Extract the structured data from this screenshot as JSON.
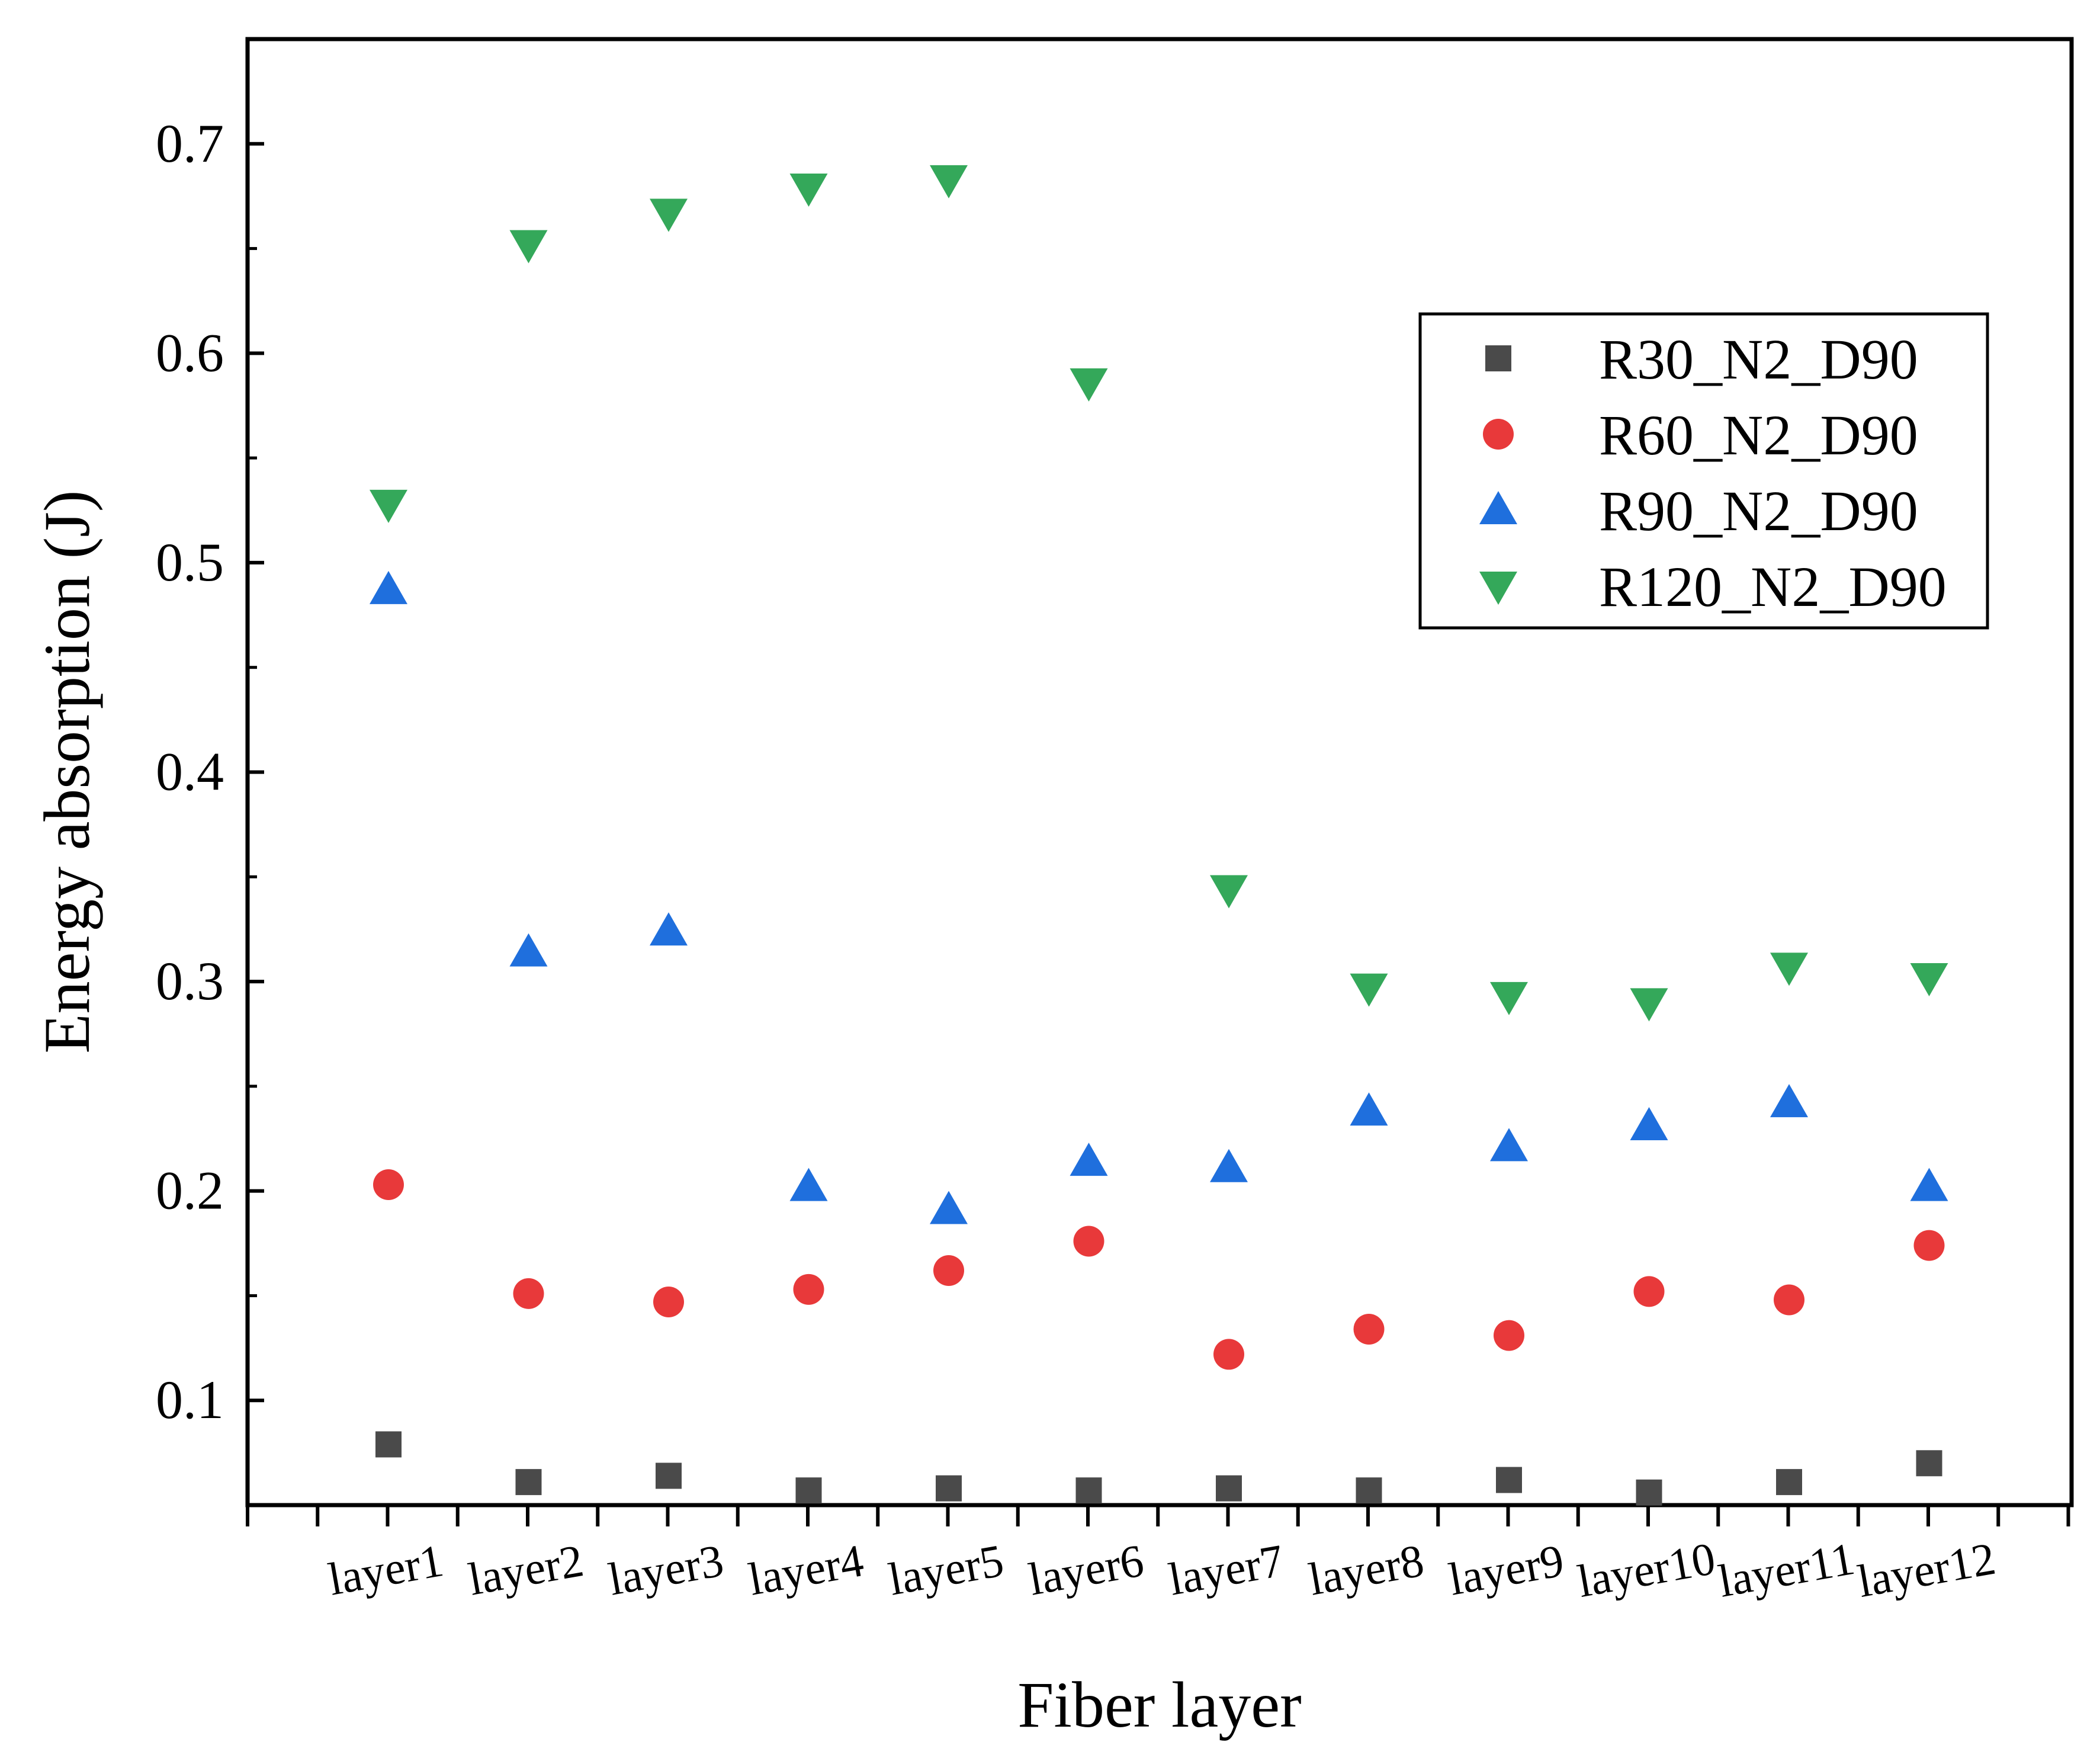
{
  "chart_data": {
    "type": "scatter",
    "title": "",
    "xlabel": "Fiber layer",
    "ylabel": "Energy absorption (J)",
    "categories": [
      "layer1",
      "layer2",
      "layer3",
      "layer4",
      "layer5",
      "layer6",
      "layer7",
      "layer8",
      "layer9",
      "layer10",
      "layer11",
      "layer12"
    ],
    "ylim": [
      0.05,
      0.75
    ],
    "yticks": [
      0.1,
      0.2,
      0.3,
      0.4,
      0.5,
      0.6,
      0.7
    ],
    "ytick_labels": [
      "0.1",
      "0.2",
      "0.3",
      "0.4",
      "0.5",
      "0.6",
      "0.7"
    ],
    "grid": false,
    "legend_position": "upper-right",
    "series": [
      {
        "name": "R30_N2_D90",
        "marker": "square",
        "color": "#4a4a4a",
        "values": [
          0.079,
          0.061,
          0.064,
          0.057,
          0.058,
          0.057,
          0.058,
          0.057,
          0.062,
          0.056,
          0.061,
          0.07
        ]
      },
      {
        "name": "R60_N2_D90",
        "marker": "circle",
        "color": "#e8393a",
        "values": [
          0.203,
          0.151,
          0.147,
          0.153,
          0.162,
          0.176,
          0.122,
          0.134,
          0.131,
          0.152,
          0.148,
          0.174
        ]
      },
      {
        "name": "R90_N2_D90",
        "marker": "triangle-up",
        "color": "#1f6fdd",
        "values": [
          0.487,
          0.314,
          0.324,
          0.202,
          0.191,
          0.214,
          0.211,
          0.238,
          0.221,
          0.231,
          0.242,
          0.202
        ]
      },
      {
        "name": "R120_N2_D90",
        "marker": "triangle-down",
        "color": "#34a85a",
        "values": [
          0.528,
          0.652,
          0.667,
          0.679,
          0.683,
          0.586,
          0.344,
          0.297,
          0.293,
          0.29,
          0.307,
          0.302
        ]
      }
    ]
  }
}
